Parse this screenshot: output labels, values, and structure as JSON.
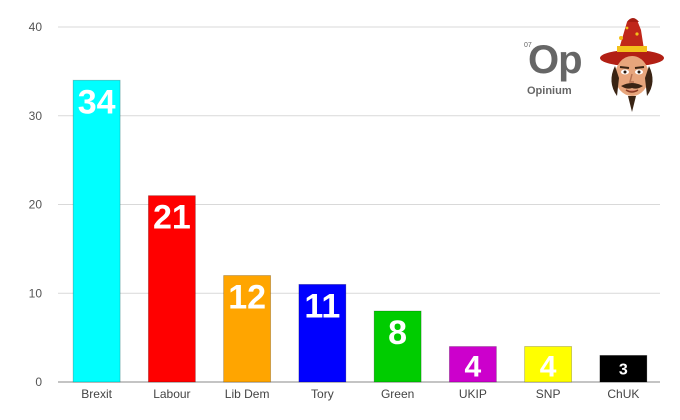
{
  "chart_data": {
    "type": "bar",
    "title": "",
    "xlabel": "",
    "ylabel": "",
    "categories": [
      "Brexit",
      "Labour",
      "Lib Dem",
      "Tory",
      "Green",
      "UKIP",
      "SNP",
      "ChUK"
    ],
    "values": [
      34,
      21,
      12,
      11,
      8,
      4,
      4,
      3
    ],
    "data_labels": [
      "34",
      "21",
      "12",
      "11",
      "8",
      "4",
      "4",
      "3"
    ],
    "colors": [
      "#00ffff",
      "#ff0000",
      "#ffa500",
      "#0000ff",
      "#00cc00",
      "#cc00cc",
      "#ffff00",
      "#000000"
    ],
    "yticks": [
      "0",
      "10",
      "20",
      "30",
      "40"
    ],
    "ylim": [
      0,
      40
    ],
    "grid": true,
    "legend": "none"
  },
  "logo": {
    "superscript": "07",
    "mark": "Op",
    "name": "Opinium"
  },
  "mascot_icon": "wizard-mascot-icon"
}
